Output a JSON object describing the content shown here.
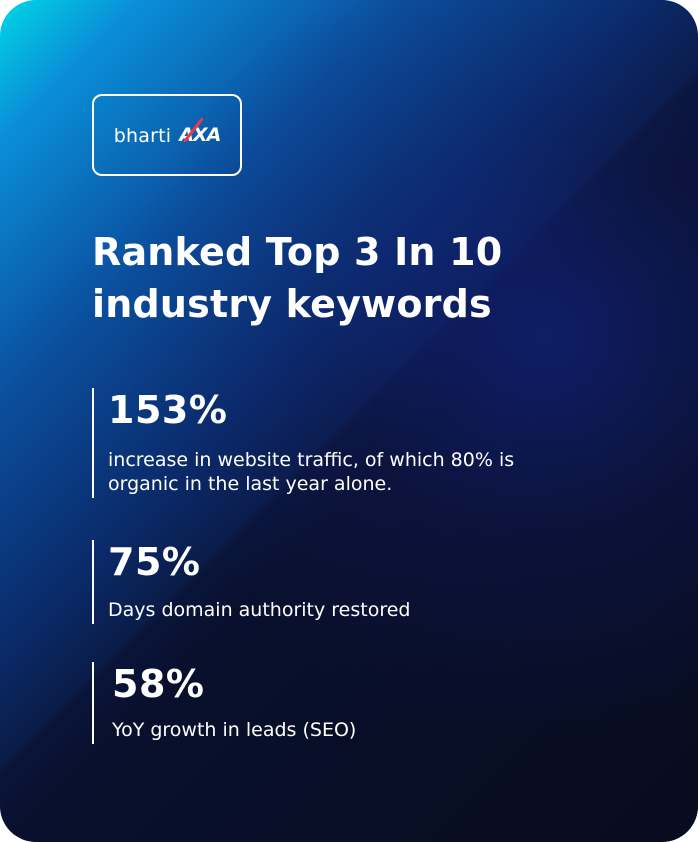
{
  "logo": {
    "brand_primary": "bharti",
    "brand_secondary": "AXA",
    "accent_color": "#e8394d"
  },
  "headline": "Ranked Top 3 In 10 industry keywords",
  "stats": [
    {
      "value": "153%",
      "description": "increase in website traffic, of which 80% is organic in the last year alone."
    },
    {
      "value": "75%",
      "description": "Days domain authority restored"
    },
    {
      "value": "58%",
      "description": "YoY growth in leads (SEO)"
    }
  ],
  "colors": {
    "gradient_start": "#00d6e6",
    "gradient_mid": "#0b4f9e",
    "background_dark": "#0a1230",
    "text": "#ffffff"
  }
}
